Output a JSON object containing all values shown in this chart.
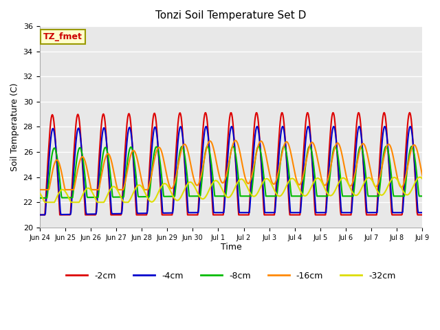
{
  "title": "Tonzi Soil Temperature Set D",
  "xlabel": "Time",
  "ylabel": "Soil Temperature (C)",
  "ylim": [
    20,
    36
  ],
  "n_days": 16,
  "annotation": "TZ_fmet",
  "annotation_color": "#cc0000",
  "annotation_bg": "#ffffcc",
  "annotation_border": "#999900",
  "series": [
    {
      "label": "-2cm",
      "color": "#dd0000",
      "lw": 1.5
    },
    {
      "label": "-4cm",
      "color": "#0000cc",
      "lw": 1.5
    },
    {
      "label": "-8cm",
      "color": "#00bb00",
      "lw": 1.5
    },
    {
      "label": "-16cm",
      "color": "#ff8800",
      "lw": 1.5
    },
    {
      "label": "-32cm",
      "color": "#dddd00",
      "lw": 1.5
    }
  ],
  "tick_labels": [
    "Jun 24",
    "Jun 25",
    "Jun 26",
    "Jun 27",
    "Jun 28",
    "Jun 29",
    "Jun 30",
    "Jul 1",
    "Jul 2",
    "Jul 3",
    "Jul 4",
    "Jul 5",
    "Jul 6",
    "Jul 7",
    "Jul 8",
    "Jul 9"
  ],
  "yticks": [
    20,
    22,
    24,
    26,
    28,
    30,
    32,
    34,
    36
  ],
  "bg_color": "#e8e8e8",
  "grid_color": "#ffffff",
  "fig_bg": "#ffffff"
}
